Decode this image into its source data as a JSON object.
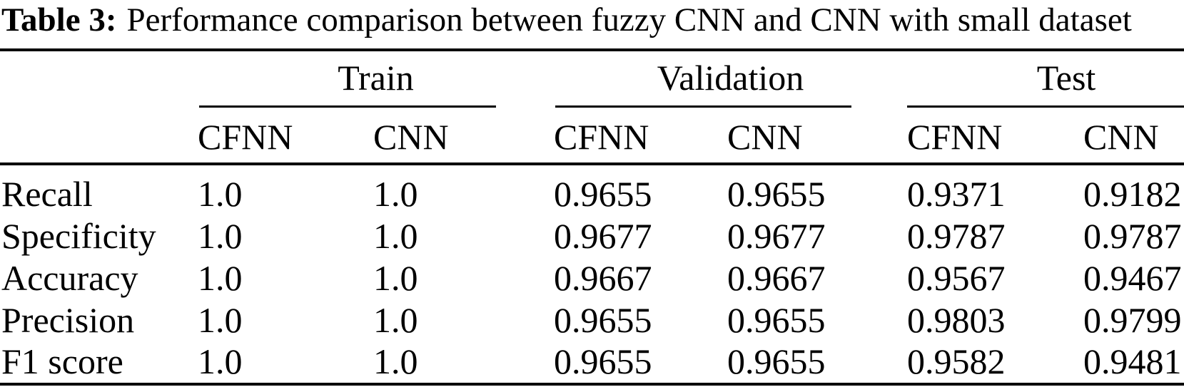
{
  "title": {
    "label": "Table 3:",
    "text": "Performance comparison between fuzzy CNN and CNN with small dataset"
  },
  "table": {
    "groups": [
      {
        "name": "Train"
      },
      {
        "name": "Validation"
      },
      {
        "name": "Test"
      }
    ],
    "subheaders": [
      "CFNN",
      "CNN",
      "CFNN",
      "CNN",
      "CFNN",
      "CNN"
    ],
    "rows": [
      {
        "metric": "Recall",
        "values": [
          "1.0",
          "1.0",
          "0.9655",
          "0.9655",
          "0.9371",
          "0.9182"
        ]
      },
      {
        "metric": "Specificity",
        "values": [
          "1.0",
          "1.0",
          "0.9677",
          "0.9677",
          "0.9787",
          "0.9787"
        ]
      },
      {
        "metric": "Accuracy",
        "values": [
          "1.0",
          "1.0",
          "0.9667",
          "0.9667",
          "0.9567",
          "0.9467"
        ]
      },
      {
        "metric": "Precision",
        "values": [
          "1.0",
          "1.0",
          "0.9655",
          "0.9655",
          "0.9803",
          "0.9799"
        ]
      },
      {
        "metric": "F1 score",
        "values": [
          "1.0",
          "1.0",
          "0.9655",
          "0.9655",
          "0.9582",
          "0.9481"
        ]
      }
    ]
  },
  "chart_data": {
    "type": "table",
    "title": "Table 3: Performance comparison between fuzzy CNN and CNN with small dataset",
    "column_groups": [
      "Train",
      "Validation",
      "Test"
    ],
    "columns": [
      "Metric",
      "Train CFNN",
      "Train CNN",
      "Validation CFNN",
      "Validation CNN",
      "Test CFNN",
      "Test CNN"
    ],
    "rows": [
      [
        "Recall",
        1.0,
        1.0,
        0.9655,
        0.9655,
        0.9371,
        0.9182
      ],
      [
        "Specificity",
        1.0,
        1.0,
        0.9677,
        0.9677,
        0.9787,
        0.9787
      ],
      [
        "Accuracy",
        1.0,
        1.0,
        0.9667,
        0.9667,
        0.9567,
        0.9467
      ],
      [
        "Precision",
        1.0,
        1.0,
        0.9655,
        0.9655,
        0.9803,
        0.9799
      ],
      [
        "F1 score",
        1.0,
        1.0,
        0.9655,
        0.9655,
        0.9582,
        0.9481
      ]
    ],
    "colors": {
      "text": "#000000",
      "background": "#ffffff",
      "rules": "#000000"
    }
  }
}
